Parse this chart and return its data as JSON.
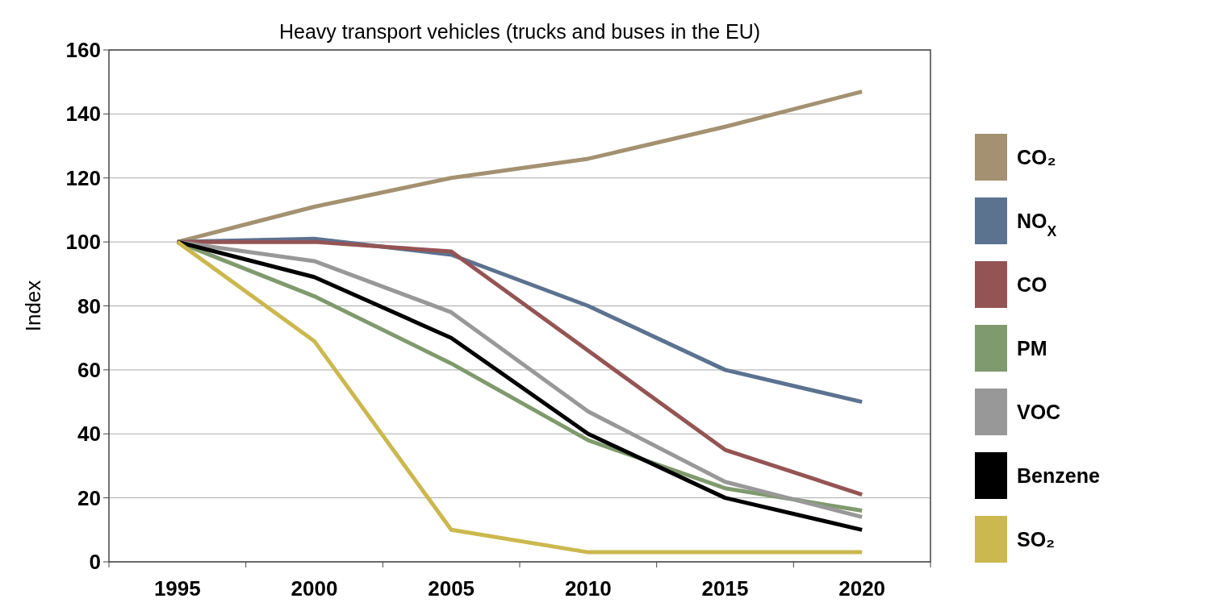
{
  "chart_data": {
    "type": "line",
    "title": "Heavy transport vehicles (trucks and buses in the EU)",
    "ylabel": "Index",
    "categories": [
      "1995",
      "2000",
      "2005",
      "2010",
      "2015",
      "2020"
    ],
    "series": [
      {
        "name": "CO₂",
        "color": "#a39171",
        "values": [
          100,
          111,
          120,
          126,
          136,
          147
        ]
      },
      {
        "name": "NO$_{X}$",
        "color": "#5b7290",
        "values": [
          100,
          101,
          96,
          80,
          60,
          50
        ]
      },
      {
        "name": "CO",
        "color": "#955454",
        "values": [
          100,
          100,
          97,
          66,
          35,
          21
        ]
      },
      {
        "name": "PM",
        "color": "#7f9a6d",
        "values": [
          100,
          83,
          62,
          38,
          23,
          16
        ]
      },
      {
        "name": "VOC",
        "color": "#989898",
        "values": [
          100,
          94,
          78,
          47,
          25,
          14
        ]
      },
      {
        "name": "Benzene",
        "color": "#000000",
        "values": [
          100,
          89,
          70,
          40,
          20,
          10
        ]
      },
      {
        "name": "SO₂",
        "color": "#cbb84e",
        "values": [
          100,
          69,
          10,
          3,
          3,
          3
        ]
      }
    ],
    "ylim": [
      0,
      160
    ],
    "yticks": [
      0,
      20,
      40,
      60,
      80,
      100,
      120,
      140,
      160
    ],
    "grid": "y",
    "legend": "right",
    "marker": "none",
    "line_style": "solid"
  }
}
